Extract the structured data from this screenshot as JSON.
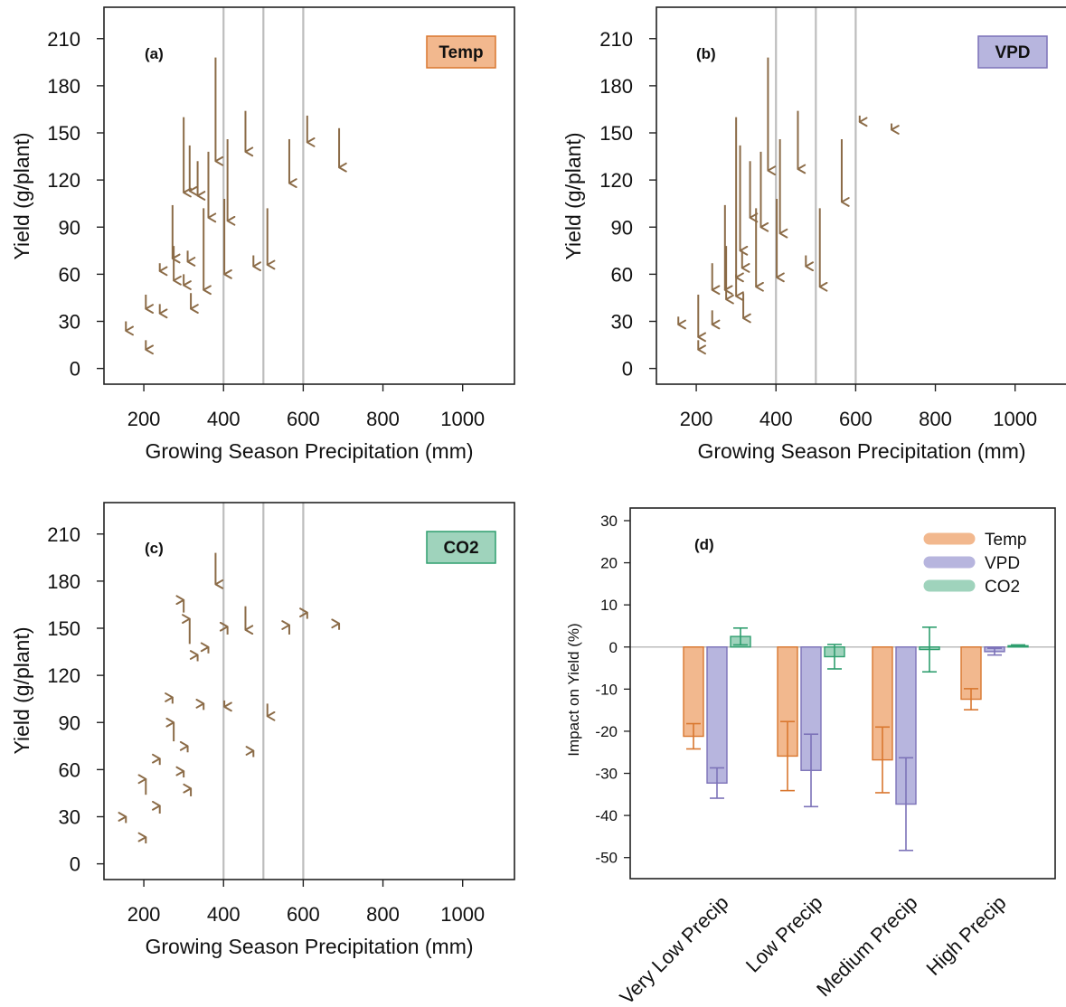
{
  "colors": {
    "arrow": "#8B6B47",
    "guide_line": "#BDBDBD",
    "temp_fill": "#F2B88E",
    "temp_stroke": "#D9772F",
    "vpd_fill": "#B7B5DE",
    "vpd_stroke": "#7C72B8",
    "co2_fill": "#9FD3BC",
    "co2_stroke": "#2E9E6E"
  },
  "chart_data": [
    {
      "panel": "(a)",
      "badge": "Temp",
      "type": "scatter",
      "subtype": "arrows",
      "xlabel": "Growing Season Precipitation (mm)",
      "ylabel": "Yield (g/plant)",
      "xlim": [
        100,
        1130
      ],
      "ylim": [
        -10,
        230
      ],
      "xticks": [
        200,
        400,
        600,
        800,
        1000
      ],
      "yticks": [
        0,
        30,
        60,
        90,
        120,
        150,
        180,
        210
      ],
      "vlines": [
        400,
        500,
        600
      ],
      "arrows": [
        {
          "x": 155,
          "from": 30,
          "to": 24
        },
        {
          "x": 205,
          "from": 47,
          "to": 38
        },
        {
          "x": 205,
          "from": 18,
          "to": 12
        },
        {
          "x": 240,
          "from": 67,
          "to": 62
        },
        {
          "x": 240,
          "from": 41,
          "to": 35
        },
        {
          "x": 272,
          "from": 104,
          "to": 70
        },
        {
          "x": 275,
          "from": 78,
          "to": 56
        },
        {
          "x": 300,
          "from": 160,
          "to": 112
        },
        {
          "x": 300,
          "from": 60,
          "to": 53
        },
        {
          "x": 310,
          "from": 75,
          "to": 68
        },
        {
          "x": 315,
          "from": 142,
          "to": 113
        },
        {
          "x": 318,
          "from": 48,
          "to": 38
        },
        {
          "x": 335,
          "from": 132,
          "to": 110
        },
        {
          "x": 350,
          "from": 102,
          "to": 50
        },
        {
          "x": 362,
          "from": 138,
          "to": 96
        },
        {
          "x": 380,
          "from": 198,
          "to": 132
        },
        {
          "x": 402,
          "from": 108,
          "to": 60
        },
        {
          "x": 410,
          "from": 146,
          "to": 94
        },
        {
          "x": 455,
          "from": 164,
          "to": 138
        },
        {
          "x": 475,
          "from": 72,
          "to": 65
        },
        {
          "x": 510,
          "from": 102,
          "to": 66
        },
        {
          "x": 565,
          "from": 146,
          "to": 118
        },
        {
          "x": 610,
          "from": 161,
          "to": 144
        },
        {
          "x": 690,
          "from": 153,
          "to": 128
        }
      ]
    },
    {
      "panel": "(b)",
      "badge": "VPD",
      "type": "scatter",
      "subtype": "arrows",
      "xlabel": "Growing Season Precipitation (mm)",
      "ylabel": "Yield (g/plant)",
      "xlim": [
        100,
        1130
      ],
      "ylim": [
        -10,
        230
      ],
      "xticks": [
        200,
        400,
        600,
        800,
        1000
      ],
      "yticks": [
        0,
        30,
        60,
        90,
        120,
        150,
        180,
        210
      ],
      "vlines": [
        400,
        500,
        600
      ],
      "arrows": [
        {
          "x": 155,
          "from": 33,
          "to": 28
        },
        {
          "x": 205,
          "from": 47,
          "to": 20
        },
        {
          "x": 205,
          "from": 18,
          "to": 12
        },
        {
          "x": 240,
          "from": 67,
          "to": 50
        },
        {
          "x": 240,
          "from": 37,
          "to": 28
        },
        {
          "x": 272,
          "from": 104,
          "to": 50
        },
        {
          "x": 275,
          "from": 78,
          "to": 44
        },
        {
          "x": 300,
          "from": 160,
          "to": 58
        },
        {
          "x": 300,
          "from": 60,
          "to": 46
        },
        {
          "x": 310,
          "from": 142,
          "to": 75
        },
        {
          "x": 315,
          "from": 75,
          "to": 64
        },
        {
          "x": 318,
          "from": 48,
          "to": 32
        },
        {
          "x": 335,
          "from": 132,
          "to": 96
        },
        {
          "x": 350,
          "from": 102,
          "to": 52
        },
        {
          "x": 362,
          "from": 138,
          "to": 90
        },
        {
          "x": 380,
          "from": 198,
          "to": 126
        },
        {
          "x": 402,
          "from": 108,
          "to": 58
        },
        {
          "x": 410,
          "from": 146,
          "to": 86
        },
        {
          "x": 455,
          "from": 164,
          "to": 127
        },
        {
          "x": 475,
          "from": 72,
          "to": 65
        },
        {
          "x": 510,
          "from": 102,
          "to": 52
        },
        {
          "x": 565,
          "from": 146,
          "to": 106
        },
        {
          "x": 610,
          "from": 161,
          "to": 157
        },
        {
          "x": 690,
          "from": 156,
          "to": 152
        }
      ]
    },
    {
      "panel": "(c)",
      "badge": "CO2",
      "type": "scatter",
      "subtype": "arrows",
      "xlabel": "Growing Season Precipitation (mm)",
      "ylabel": "Yield (g/plant)",
      "xlim": [
        100,
        1130
      ],
      "ylim": [
        -10,
        230
      ],
      "xticks": [
        200,
        400,
        600,
        800,
        1000
      ],
      "yticks": [
        0,
        30,
        60,
        90,
        120,
        150,
        180,
        210
      ],
      "vlines": [
        400,
        500,
        600
      ],
      "arrows": [
        {
          "x": 155,
          "from": 26,
          "to": 30
        },
        {
          "x": 205,
          "from": 13,
          "to": 17
        },
        {
          "x": 205,
          "from": 44,
          "to": 54
        },
        {
          "x": 240,
          "from": 63,
          "to": 67
        },
        {
          "x": 240,
          "from": 32,
          "to": 37
        },
        {
          "x": 272,
          "from": 102,
          "to": 106
        },
        {
          "x": 275,
          "from": 78,
          "to": 90
        },
        {
          "x": 300,
          "from": 160,
          "to": 168
        },
        {
          "x": 300,
          "from": 55,
          "to": 59
        },
        {
          "x": 310,
          "from": 71,
          "to": 75
        },
        {
          "x": 315,
          "from": 140,
          "to": 156
        },
        {
          "x": 318,
          "from": 43,
          "to": 48
        },
        {
          "x": 335,
          "from": 129,
          "to": 133
        },
        {
          "x": 350,
          "from": 98,
          "to": 102
        },
        {
          "x": 362,
          "from": 134,
          "to": 138
        },
        {
          "x": 380,
          "from": 198,
          "to": 178
        },
        {
          "x": 402,
          "from": 104,
          "to": 100
        },
        {
          "x": 410,
          "from": 146,
          "to": 151
        },
        {
          "x": 455,
          "from": 164,
          "to": 149
        },
        {
          "x": 475,
          "from": 68,
          "to": 72
        },
        {
          "x": 510,
          "from": 102,
          "to": 94
        },
        {
          "x": 565,
          "from": 146,
          "to": 152
        },
        {
          "x": 610,
          "from": 156,
          "to": 160
        },
        {
          "x": 690,
          "from": 149,
          "to": 153
        }
      ]
    },
    {
      "panel": "(d)",
      "type": "bar",
      "ylabel": "Impact on Yield (%)",
      "ylim": [
        -55,
        33
      ],
      "yticks": [
        -50,
        -40,
        -30,
        -20,
        -10,
        0,
        10,
        20,
        30
      ],
      "categories": [
        "Very Low Precip",
        "Low Precip",
        "Medium Precip",
        "High Precip"
      ],
      "series": [
        {
          "name": "Temp",
          "values": [
            -21.2,
            -25.9,
            -26.8,
            -12.4
          ],
          "err": [
            3.0,
            8.2,
            7.8,
            2.5
          ]
        },
        {
          "name": "VPD",
          "values": [
            -32.3,
            -29.3,
            -37.3,
            -1.1
          ],
          "err": [
            3.6,
            8.6,
            11.0,
            0.8
          ]
        },
        {
          "name": "CO2",
          "values": [
            2.5,
            -2.3,
            -0.6,
            0.3
          ],
          "err": [
            2.0,
            2.9,
            5.3,
            0.2
          ]
        }
      ],
      "legend": "top-right"
    }
  ]
}
